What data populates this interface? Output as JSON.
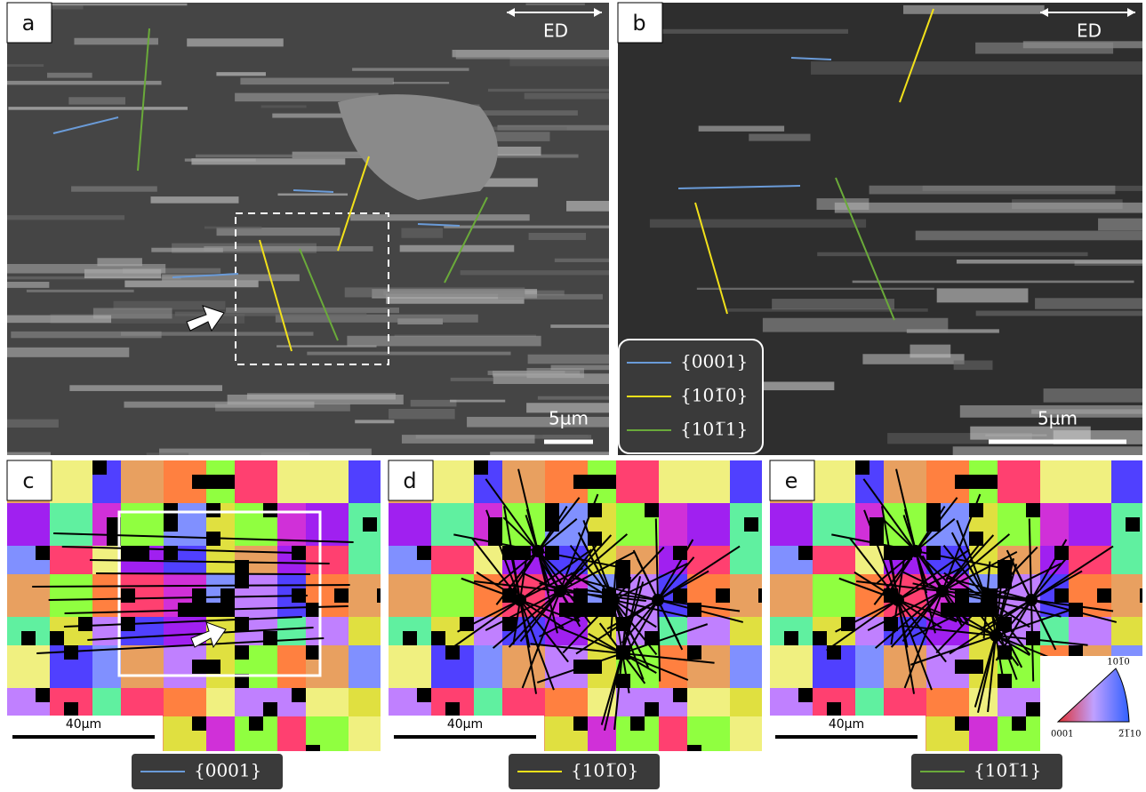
{
  "panels": [
    {
      "label": "a",
      "direction": "ED",
      "scale_bar": "5µm"
    },
    {
      "label": "b",
      "direction": "ED",
      "scale_bar": "5µm"
    },
    {
      "label": "c",
      "scale_bar": "40µm"
    },
    {
      "label": "d",
      "scale_bar": "40µm"
    },
    {
      "label": "e",
      "scale_bar": "40µm"
    }
  ],
  "legend": [
    {
      "label": "{0001}",
      "color": "#6a9bd8"
    },
    {
      "label": "{101̅0}",
      "color": "#f2e11a"
    },
    {
      "label": "{101̅1}",
      "color": "#6aaa3a"
    }
  ],
  "ipf_key": {
    "top": "101̅0",
    "left": "0001",
    "right": "2̅1̅10"
  }
}
